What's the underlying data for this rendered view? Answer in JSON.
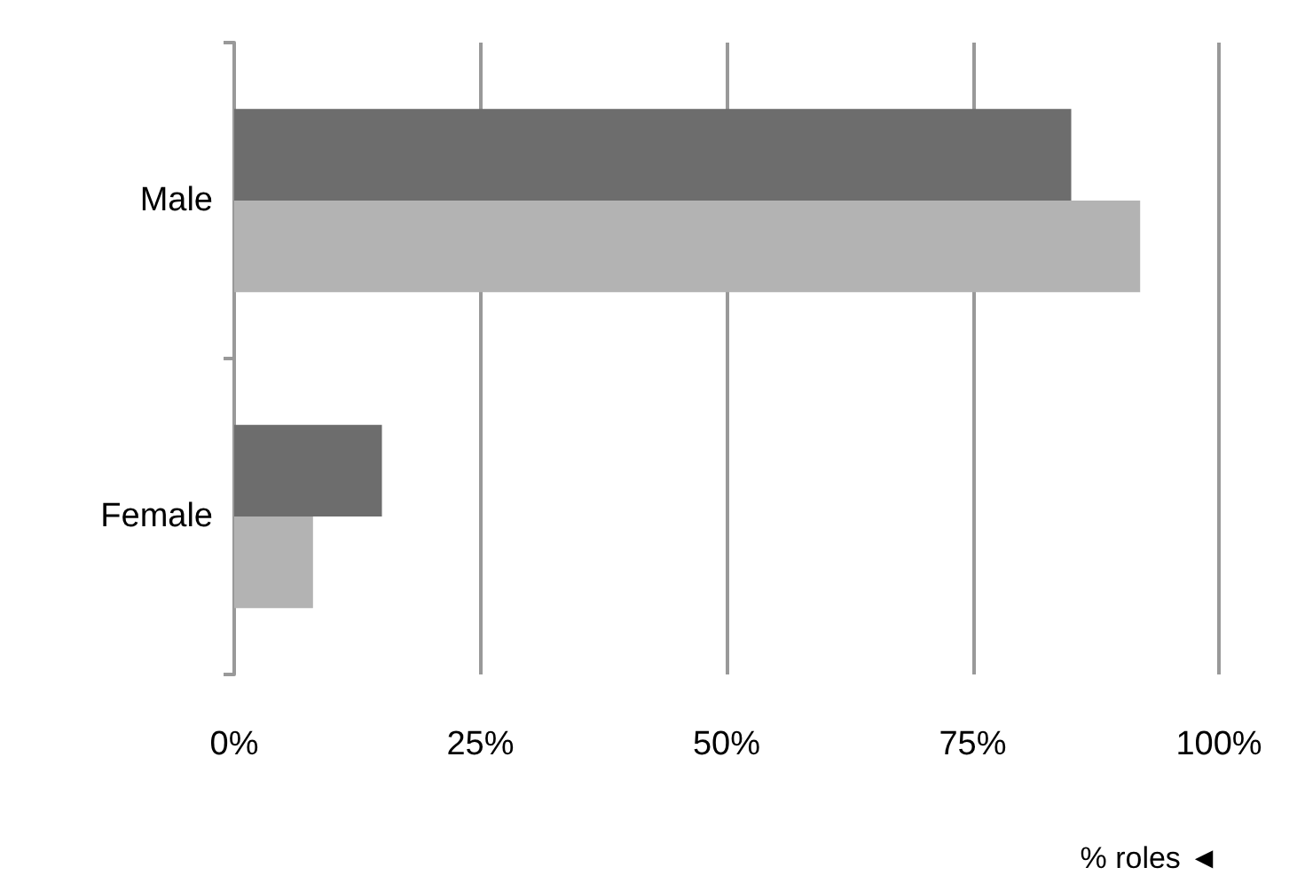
{
  "chart_data": {
    "type": "bar",
    "orientation": "horizontal",
    "categories": [
      "Male",
      "Female"
    ],
    "series": [
      {
        "color": "#6d6d6d",
        "values": [
          85,
          15
        ]
      },
      {
        "color": "#b3b3b3",
        "values": [
          92,
          8
        ]
      }
    ],
    "xlabel": "% roles ◄",
    "xlim": [
      0,
      100
    ],
    "xticks": [
      {
        "value": 0,
        "label": "0%"
      },
      {
        "value": 25,
        "label": "25%"
      },
      {
        "value": 50,
        "label": "50%"
      },
      {
        "value": 75,
        "label": "75%"
      },
      {
        "value": 100,
        "label": "100%"
      }
    ],
    "grid": "x"
  }
}
